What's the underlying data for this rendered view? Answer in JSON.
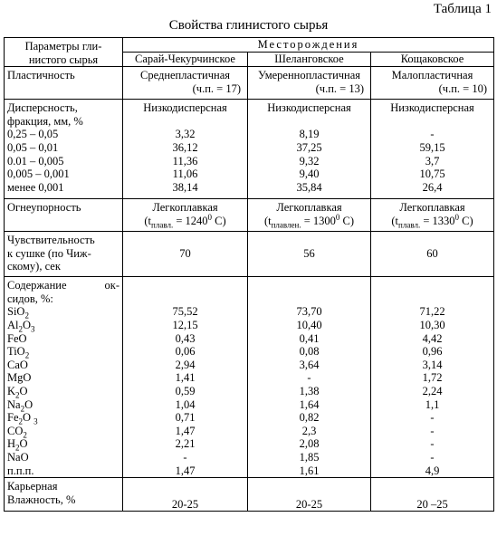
{
  "table_number": "Таблица 1",
  "title": "Свойства глинистого сырья",
  "header": {
    "param_line1": "Параметры гли-",
    "param_line2": "нистого сырья",
    "deposits_title": "Месторождения",
    "deposits": [
      "Сарай-Чекурчинское",
      "Шеланговское",
      "Кощаковское"
    ]
  },
  "plasticity": {
    "label": "Пластичность",
    "values": [
      {
        "name": "Среднепластичная",
        "index": "(ч.п. = 17)"
      },
      {
        "name": "Умереннопластичная",
        "index": "(ч.п. = 13)"
      },
      {
        "name": "Малопластичная",
        "index": "(ч.п. = 10)"
      }
    ]
  },
  "dispersity": {
    "label_line1": "Дисперсность,",
    "label_line2": "фракция, мм, %",
    "values": [
      "Низкодисперсная",
      "Низкодисперсная",
      "Низкодисперсная"
    ],
    "fractions": [
      {
        "label": "0,25 – 0,05",
        "values": [
          "3,32",
          "8,19",
          "-"
        ]
      },
      {
        "label": "0,05 – 0,01",
        "values": [
          "36,12",
          "37,25",
          "59,15"
        ]
      },
      {
        "label": "0.01 – 0,005",
        "values": [
          "11,36",
          "9,32",
          "3,7"
        ]
      },
      {
        "label": "0,005 – 0,001",
        "values": [
          "11,06",
          "9,40",
          "10,75"
        ]
      },
      {
        "label": "менее 0,001",
        "values": [
          "38,14",
          "35,84",
          "26,4"
        ]
      }
    ]
  },
  "refractoriness": {
    "label": "Огнеупорность",
    "values": [
      {
        "name": "Легкоплавкая",
        "t": "t",
        "sub": "плавл.",
        "eq": " = 1240",
        "sup": "0",
        "unit": " C)"
      },
      {
        "name": "Легкоплавкая",
        "t": "t",
        "sub": "плавлен.",
        "eq": " = 1300",
        "sup": "0",
        "unit": " C)"
      },
      {
        "name": "Легкоплавкая",
        "t": "t",
        "sub": "плавл.",
        "eq": " = 1330",
        "sup": "0",
        "unit": " C)"
      }
    ]
  },
  "drying": {
    "label_line1": "Чувствительность",
    "label_line2": "к сушке (по Чиж-",
    "label_line3": "скому), сек",
    "values": [
      "70",
      "56",
      "60"
    ]
  },
  "oxides": {
    "label_line1": "Содержание ок-",
    "label_line2": "сидов, %:",
    "rows": [
      {
        "f": "SiO",
        "s": "2",
        "f2": "",
        "s2": "",
        "values": [
          "75,52",
          "73,70",
          "71,22"
        ]
      },
      {
        "f": "Al",
        "s": "2",
        "f2": "O",
        "s2": "3",
        "values": [
          "12,15",
          "10,40",
          "10,30"
        ]
      },
      {
        "f": "FeO",
        "s": "",
        "f2": "",
        "s2": "",
        "values": [
          "0,43",
          "0,41",
          "4,42"
        ]
      },
      {
        "f": "TiO",
        "s": "2",
        "f2": "",
        "s2": "",
        "values": [
          "0,06",
          "0,08",
          "0,96"
        ]
      },
      {
        "f": "CaO",
        "s": "",
        "f2": "",
        "s2": "",
        "values": [
          "2,94",
          "3,64",
          "3,14"
        ]
      },
      {
        "f": "MgO",
        "s": "",
        "f2": "",
        "s2": "",
        "values": [
          "1,41",
          "-",
          "1,72"
        ]
      },
      {
        "f": "K",
        "s": "2",
        "f2": "O",
        "s2": "",
        "values": [
          "0,59",
          "1,38",
          "2,24"
        ]
      },
      {
        "f": "Na",
        "s": "2",
        "f2": "O",
        "s2": "",
        "values": [
          "1,04",
          "1,64",
          "1,1"
        ]
      },
      {
        "f": "Fe",
        "s": "2",
        "f2": "O ",
        "s2": "3",
        "values": [
          "0,71",
          "0,82",
          "-"
        ]
      },
      {
        "f": "CO",
        "s": "2",
        "f2": "",
        "s2": "",
        "values": [
          "1,47",
          "2,3",
          "-"
        ]
      },
      {
        "f": "H",
        "s": "2",
        "f2": "O",
        "s2": "",
        "values": [
          "2,21",
          "2,08",
          "-"
        ]
      },
      {
        "f": "NaO",
        "s": "",
        "f2": "",
        "s2": "",
        "values": [
          "-",
          "1,85",
          "-"
        ]
      },
      {
        "f": "п.п.п.",
        "s": "",
        "f2": "",
        "s2": "",
        "values": [
          "1,47",
          "1,61",
          "4,9"
        ]
      }
    ]
  },
  "moisture": {
    "label_line1": "Карьерная",
    "label_line2": "Влажность, %",
    "values": [
      "20-25",
      "20-25",
      "20 –25"
    ]
  }
}
